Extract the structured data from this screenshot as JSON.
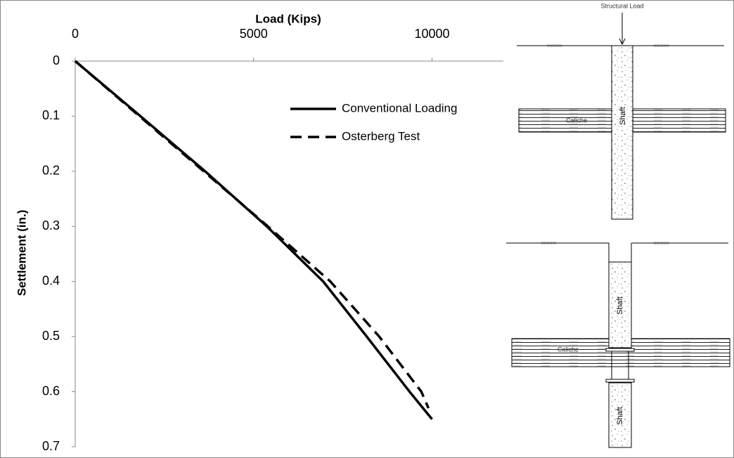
{
  "chart_data": {
    "type": "line",
    "title": "Load (Kips)",
    "y_label": "Settlement (in.)",
    "xlim": [
      0,
      12000
    ],
    "xticks": [
      0,
      5000,
      10000
    ],
    "ylim": [
      0,
      0.7
    ],
    "yticks": [
      0,
      0.1,
      0.2,
      0.3,
      0.4,
      0.5,
      0.6,
      0.7
    ],
    "y_inverted": true,
    "x_axis_position": "top",
    "series": [
      {
        "name": "Conventional Loading",
        "color": "#000000",
        "dash": "solid",
        "x": [
          0,
          1830,
          3640,
          5370,
          6950,
          8170,
          9370,
          10000
        ],
        "values": [
          0,
          0.1,
          0.2,
          0.3,
          0.4,
          0.5,
          0.6,
          0.65
        ]
      },
      {
        "name": "Osterberg Test",
        "color": "#000000",
        "dash": "dashed",
        "x": [
          0,
          1800,
          3600,
          5400,
          7150,
          8520,
          9700,
          9900
        ],
        "values": [
          0,
          0.1,
          0.2,
          0.3,
          0.4,
          0.5,
          0.6,
          0.63
        ]
      }
    ]
  },
  "diagram": {
    "load_label": "Structural Load",
    "shaft_label": "Shaft",
    "layer_label": "Caliche"
  }
}
